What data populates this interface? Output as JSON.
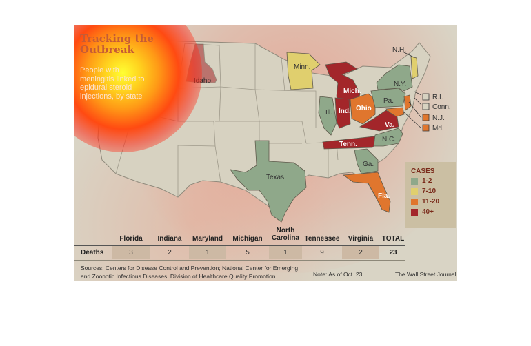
{
  "title": "Tracking the Outbreak",
  "subtitle": "People with meningitis linked to epidural steroid injections, by state",
  "colors": {
    "background": "#d9d4c5",
    "land": "#d7d2c1",
    "border": "#8f8a7c",
    "cases_1_2": "#8fa88a",
    "cases_7_10": "#e0cf6e",
    "cases_11_20": "#e0762e",
    "cases_40_plus": "#a3262a",
    "title": "#c65b35",
    "legend_text": "#7a2a1a"
  },
  "map": {
    "states": [
      {
        "name": "Idaho",
        "category": "40+"
      },
      {
        "name": "Minn.",
        "category": "7-10"
      },
      {
        "name": "Mich.",
        "category": "40+"
      },
      {
        "name": "Ill.",
        "category": "1-2"
      },
      {
        "name": "Ind.",
        "category": "40+"
      },
      {
        "name": "Ohio",
        "category": "11-20"
      },
      {
        "name": "N.Y.",
        "category": "1-2"
      },
      {
        "name": "Pa.",
        "category": "1-2"
      },
      {
        "name": "N.H.",
        "category": "7-10"
      },
      {
        "name": "Va.",
        "category": "40+"
      },
      {
        "name": "Tenn.",
        "category": "40+"
      },
      {
        "name": "N.C.",
        "category": "1-2"
      },
      {
        "name": "Ga.",
        "category": "1-2"
      },
      {
        "name": "Fla.",
        "category": "11-20"
      },
      {
        "name": "Texas",
        "category": "1-2"
      },
      {
        "name": "R.I.",
        "category": "1-2"
      },
      {
        "name": "Conn.",
        "category": "1-2"
      },
      {
        "name": "N.J.",
        "category": "11-20"
      },
      {
        "name": "Md.",
        "category": "11-20"
      }
    ]
  },
  "legend": {
    "title": "CASES",
    "items": [
      {
        "label": "1-2",
        "color": "#8fa88a"
      },
      {
        "label": "7-10",
        "color": "#e0cf6e"
      },
      {
        "label": "11-20",
        "color": "#e0762e"
      },
      {
        "label": "40+",
        "color": "#a3262a"
      }
    ]
  },
  "table": {
    "row_label": "Deaths",
    "columns": [
      {
        "state": "Florida",
        "deaths": "3"
      },
      {
        "state": "Indiana",
        "deaths": "2"
      },
      {
        "state": "Maryland",
        "deaths": "1"
      },
      {
        "state": "Michigan",
        "deaths": "5"
      },
      {
        "state": "North Carolina",
        "deaths": "1"
      },
      {
        "state": "Tennessee",
        "deaths": "9"
      },
      {
        "state": "Virginia",
        "deaths": "2"
      }
    ],
    "total_label": "TOTAL",
    "total_value": "23"
  },
  "footer": {
    "sources": "Sources: Centers for Disease Control and Prevention; National Center for Emerging and Zoonotic Infectious Diseases; Division of Healthcare Quality Promotion",
    "note": "Note: As of Oct. 23",
    "credit": "The Wall Street Journal"
  }
}
